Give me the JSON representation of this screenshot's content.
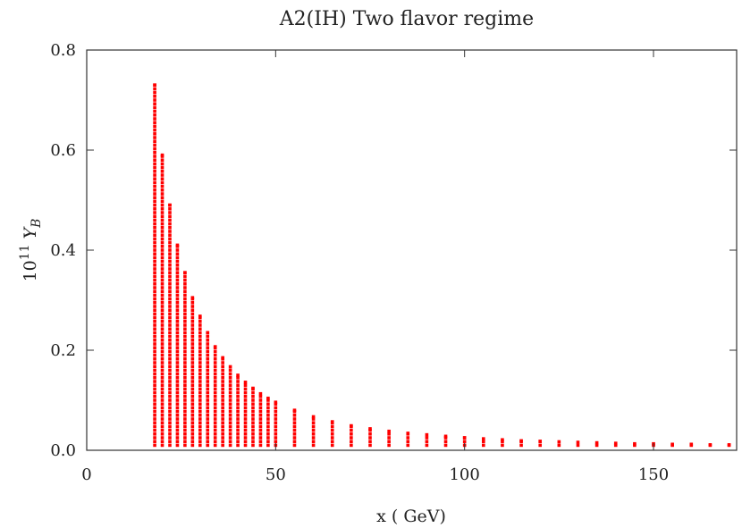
{
  "chart_data": {
    "type": "scatter",
    "title": "A2(IH) Two flavor regime",
    "xlabel": "x ( GeV)",
    "ylabel_prefix": "10",
    "ylabel_exp": "11",
    "ylabel_symbol": "Y",
    "ylabel_sub": "B",
    "xlim": [
      0,
      172
    ],
    "ylim": [
      0,
      0.8
    ],
    "xticks": [
      {
        "value": 0,
        "label": "0"
      },
      {
        "value": 50,
        "label": "50"
      },
      {
        "value": 100,
        "label": "100"
      },
      {
        "value": 150,
        "label": "150"
      }
    ],
    "yticks": [
      {
        "value": 0.0,
        "label": "0.0"
      },
      {
        "value": 0.2,
        "label": "0.2"
      },
      {
        "value": 0.4,
        "label": "0.4"
      },
      {
        "value": 0.6,
        "label": "0.6"
      },
      {
        "value": 0.8,
        "label": "0.8"
      }
    ],
    "grid": false,
    "marker_color": "#ff0000",
    "series": [
      {
        "x": [
          18,
          20,
          22,
          24,
          26,
          28,
          30,
          32,
          34,
          36,
          38,
          40,
          42,
          44,
          46,
          48,
          50,
          55,
          60,
          65,
          70,
          75,
          80,
          85,
          90,
          95,
          100,
          105,
          110,
          115,
          120,
          125,
          130,
          135,
          140,
          145,
          150,
          155,
          160,
          165,
          170
        ],
        "y": [
          0.73,
          0.59,
          0.49,
          0.41,
          0.355,
          0.305,
          0.268,
          0.235,
          0.207,
          0.185,
          0.167,
          0.15,
          0.136,
          0.124,
          0.113,
          0.104,
          0.096,
          0.08,
          0.067,
          0.057,
          0.049,
          0.043,
          0.038,
          0.034,
          0.031,
          0.028,
          0.025,
          0.023,
          0.021,
          0.019,
          0.018,
          0.017,
          0.016,
          0.015,
          0.014,
          0.013,
          0.013,
          0.012,
          0.012,
          0.011,
          0.011
        ]
      }
    ]
  }
}
